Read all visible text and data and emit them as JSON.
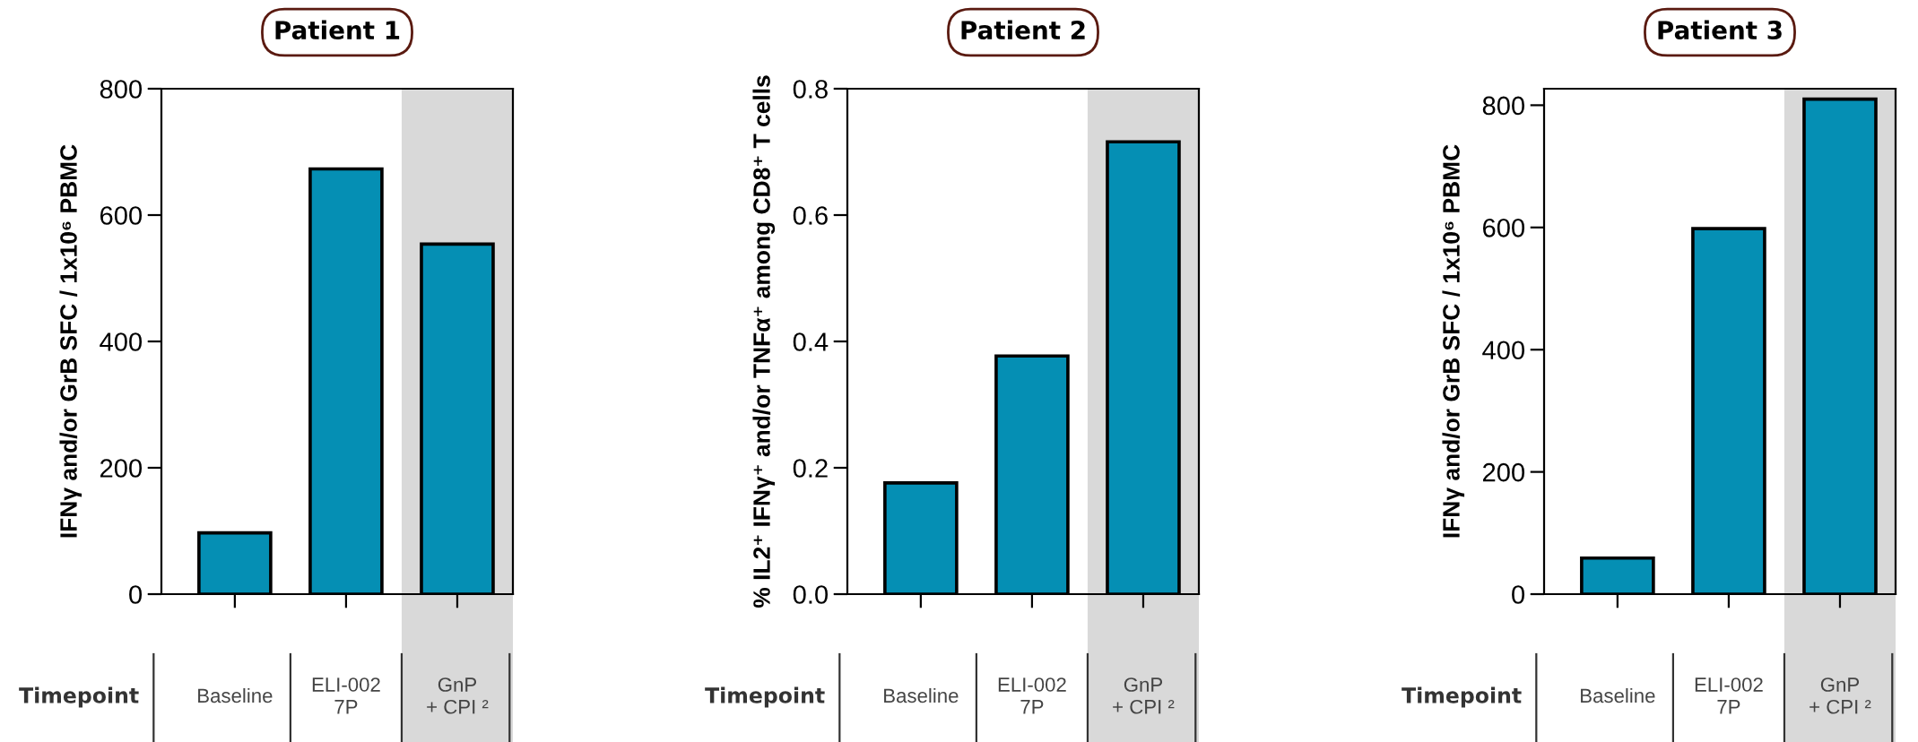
{
  "chart_data": [
    {
      "type": "bar",
      "title": "Patient 1",
      "ylabel": "IFNγ and/or GrB SFC / 1x10⁶ PBMC",
      "xlabel": "Timepoint",
      "categories": [
        "Baseline",
        "ELI-002\n7P",
        "GnP\n+ CPI ²"
      ],
      "values": [
        97,
        673,
        554
      ],
      "color": "#058fb4",
      "ylim": [
        0,
        800
      ],
      "yticks": [
        0,
        200,
        400,
        600,
        800
      ],
      "grid": false,
      "legend": false,
      "bands": [
        {
          "axis": "x",
          "from": "GnP\n+ CPI ²",
          "to": "GnP\n+ CPI ²",
          "color": "#d9d9d9"
        }
      ]
    },
    {
      "type": "bar",
      "title": "Patient 2",
      "ylabel": "% IL2⁺ IFNγ⁺ and/or TNFα⁺ among CD8⁺ T cells",
      "xlabel": "Timepoint",
      "categories": [
        "Baseline",
        "ELI-002\n7P",
        "GnP\n+ CPI ²"
      ],
      "values": [
        0.176,
        0.377,
        0.716
      ],
      "color": "#058fb4",
      "ylim": [
        0,
        0.8
      ],
      "yticks": [
        {
          "value": 0,
          "label": "0.0"
        },
        0.2,
        0.4,
        0.6,
        0.8
      ],
      "grid": false,
      "legend": false,
      "bands": [
        {
          "axis": "x",
          "from": "GnP\n+ CPI ²",
          "to": "GnP\n+ CPI ²",
          "color": "#d9d9d9"
        }
      ]
    },
    {
      "type": "bar",
      "title": "Patient 3",
      "ylabel": "IFNγ and/or GrB SFC / 1x10⁶ PBMC",
      "xlabel": "Timepoint",
      "categories": [
        "Baseline",
        "ELI-002\n7P",
        "GnP\n+ CPI ²"
      ],
      "values": [
        59,
        598,
        810
      ],
      "color": "#058fb4",
      "ylim": [
        0,
        827
      ],
      "yticks": [
        0,
        200,
        400,
        600,
        800
      ],
      "grid": false,
      "legend": false,
      "bands": [
        {
          "axis": "x",
          "from": "GnP\n+ CPI ²",
          "to": "GnP\n+ CPI ²",
          "color": "#d9d9d9"
        }
      ]
    }
  ]
}
